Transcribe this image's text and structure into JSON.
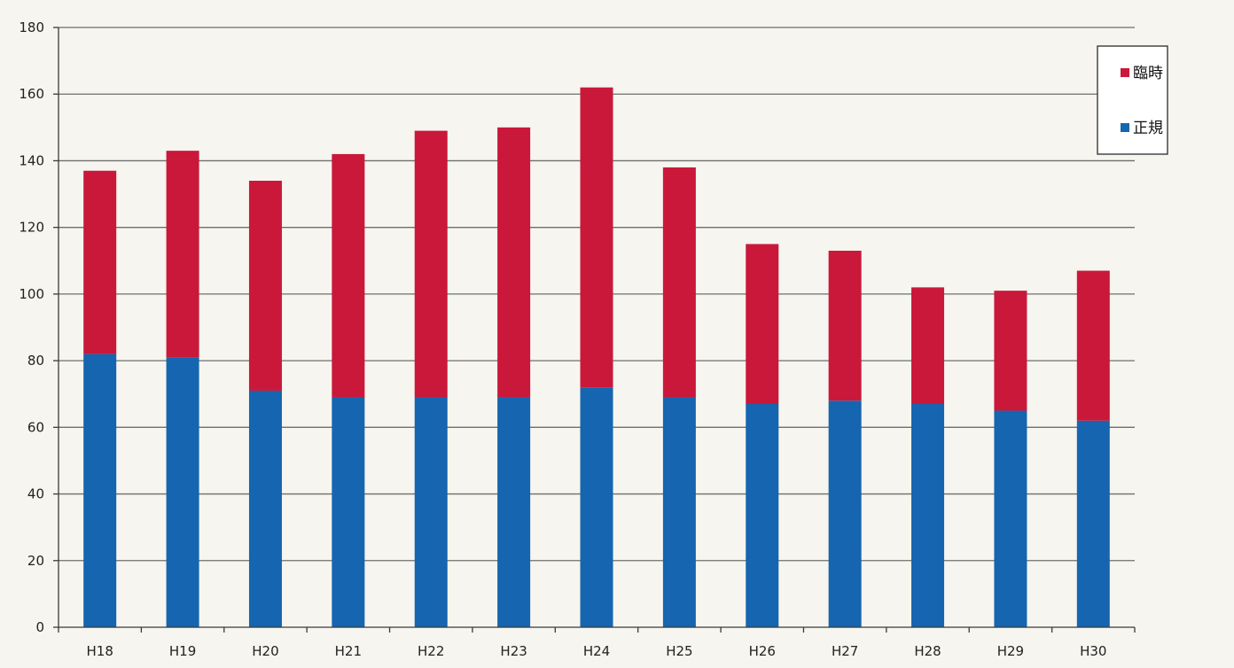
{
  "chart_data": {
    "type": "bar",
    "stacked": true,
    "title": "",
    "xlabel": "",
    "ylabel": "",
    "categories": [
      "H18",
      "H19",
      "H20",
      "H21",
      "H22",
      "H23",
      "H24",
      "H25",
      "H26",
      "H27",
      "H28",
      "H29",
      "H30"
    ],
    "series": [
      {
        "name": "正規",
        "color": "#1565b0",
        "values": [
          82,
          81,
          71,
          69,
          69,
          69,
          72,
          69,
          67,
          68,
          67,
          65,
          62
        ]
      },
      {
        "name": "臨時",
        "color": "#c9183a",
        "values": [
          55,
          62,
          63,
          73,
          80,
          81,
          90,
          69,
          48,
          45,
          35,
          36,
          45
        ]
      }
    ],
    "ylim": [
      0,
      180
    ],
    "yticks": [
      0,
      20,
      40,
      60,
      80,
      100,
      120,
      140,
      160,
      180
    ],
    "grid": true,
    "legend": {
      "position": "top-right",
      "entries": [
        "臨時",
        "正規"
      ]
    }
  }
}
